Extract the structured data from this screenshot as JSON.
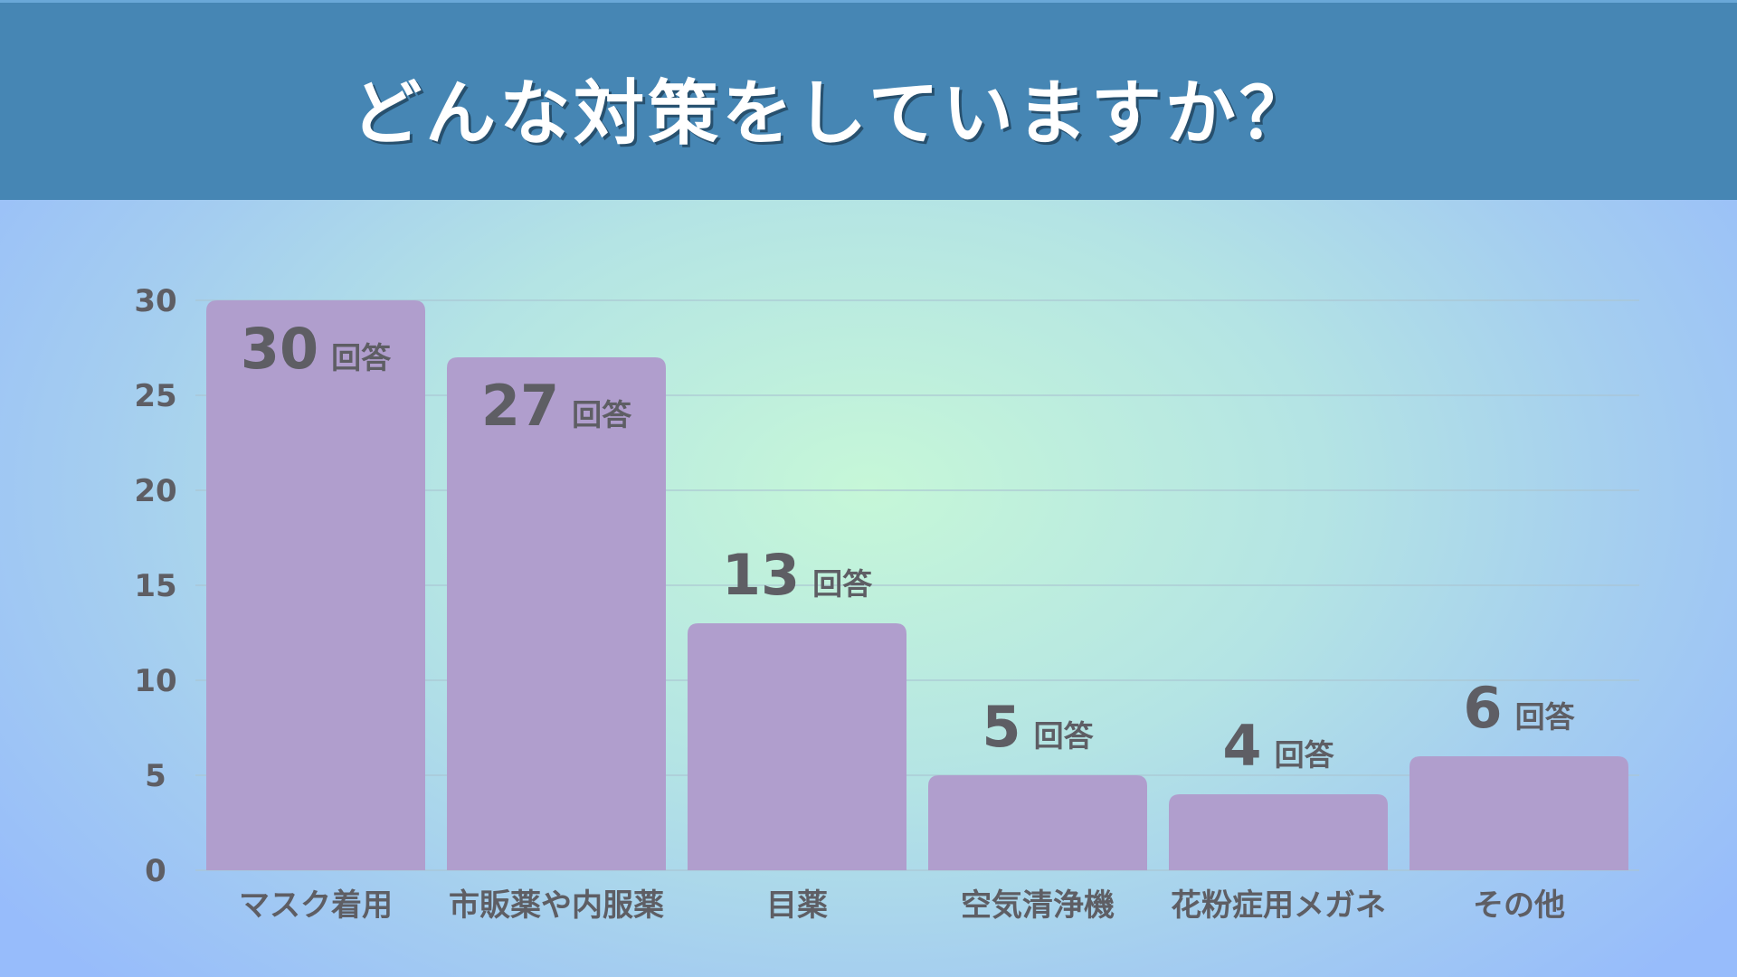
{
  "title": "どんな対策をしていますか？",
  "colors": {
    "header": "#4686b4",
    "bar": "#b09ecd",
    "text": "#5e5e64",
    "grid": "#aac4d2"
  },
  "chart_data": {
    "type": "bar",
    "title": "どんな対策をしていますか？",
    "categories": [
      "マスク着用",
      "市販薬や内服薬",
      "目薬",
      "空気清浄機",
      "花粉症用メガネ",
      "その他"
    ],
    "values": [
      30,
      27,
      13,
      5,
      4,
      6
    ],
    "value_unit": "回答",
    "ylim": [
      0,
      30
    ],
    "yticks": [
      0,
      5,
      10,
      15,
      20,
      25,
      30
    ],
    "grid": true,
    "legend": "none"
  }
}
